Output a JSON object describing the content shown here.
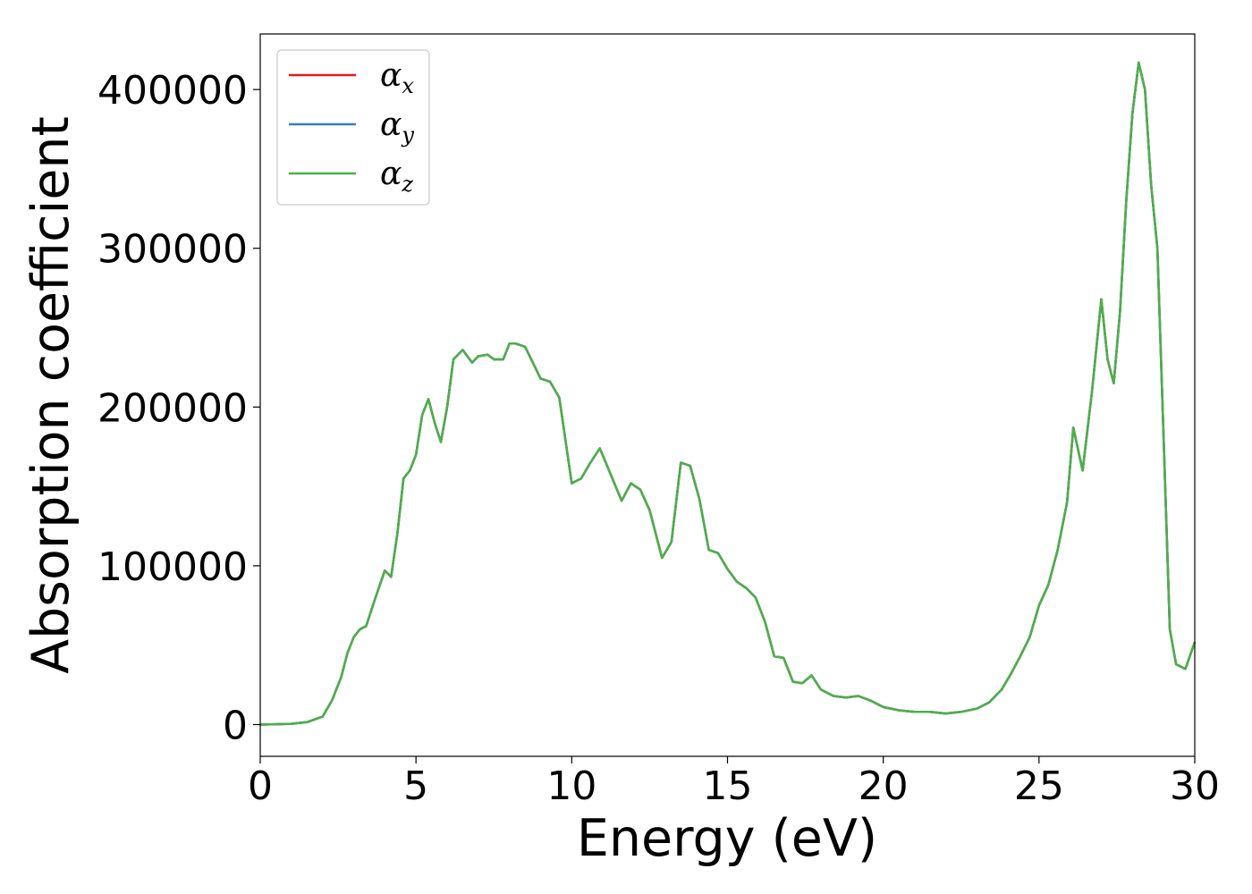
{
  "chart_data": {
    "type": "line",
    "xlabel": "Energy (eV)",
    "ylabel": "Absorption coefficient",
    "xlim": [
      0,
      30
    ],
    "ylim": [
      -20000,
      435000
    ],
    "xticks": [
      0,
      5,
      10,
      15,
      20,
      25,
      30
    ],
    "yticks": [
      0,
      100000,
      200000,
      300000,
      400000
    ],
    "grid": false,
    "legend_position": "top-left",
    "x": [
      0,
      0.5,
      1.0,
      1.5,
      2.0,
      2.3,
      2.6,
      2.8,
      3.0,
      3.2,
      3.4,
      3.7,
      4.0,
      4.2,
      4.4,
      4.6,
      4.8,
      5.0,
      5.2,
      5.4,
      5.6,
      5.8,
      6.0,
      6.2,
      6.5,
      6.8,
      7.0,
      7.3,
      7.5,
      7.8,
      8.0,
      8.2,
      8.5,
      8.8,
      9.0,
      9.3,
      9.6,
      10.0,
      10.3,
      10.6,
      10.9,
      11.2,
      11.6,
      11.9,
      12.2,
      12.5,
      12.9,
      13.2,
      13.5,
      13.8,
      14.1,
      14.4,
      14.7,
      15.0,
      15.3,
      15.6,
      15.9,
      16.2,
      16.5,
      16.8,
      17.1,
      17.4,
      17.7,
      18.0,
      18.4,
      18.8,
      19.2,
      19.6,
      20.0,
      20.5,
      21.0,
      21.5,
      22.0,
      22.5,
      23.0,
      23.4,
      23.8,
      24.1,
      24.4,
      24.7,
      25.0,
      25.3,
      25.6,
      25.9,
      26.1,
      26.4,
      26.7,
      27.0,
      27.2,
      27.4,
      27.6,
      27.8,
      28.0,
      28.2,
      28.4,
      28.6,
      28.8,
      29.0,
      29.2,
      29.4,
      29.7,
      30.0
    ],
    "series": [
      {
        "name": "α",
        "subscript": "x",
        "color": "#e41a1c",
        "values": [
          0,
          200,
          500,
          1500,
          5000,
          15000,
          30000,
          45000,
          55000,
          60000,
          62000,
          80000,
          97000,
          93000,
          120000,
          155000,
          160000,
          170000,
          195000,
          205000,
          190000,
          178000,
          200000,
          230000,
          236000,
          228000,
          232000,
          233000,
          230000,
          230000,
          240000,
          240000,
          238000,
          226000,
          218000,
          216000,
          206000,
          152000,
          155000,
          165000,
          174000,
          160000,
          141000,
          152000,
          148000,
          135000,
          105000,
          115000,
          165000,
          163000,
          142000,
          110000,
          108000,
          98000,
          90000,
          86000,
          80000,
          65000,
          43000,
          42000,
          27000,
          26000,
          31000,
          22000,
          18000,
          17000,
          18000,
          15000,
          11000,
          9000,
          8000,
          8000,
          7000,
          8000,
          10000,
          14000,
          22000,
          32000,
          43000,
          55000,
          75000,
          88000,
          110000,
          140000,
          187000,
          160000,
          210000,
          268000,
          230000,
          215000,
          260000,
          330000,
          385000,
          417000,
          400000,
          340000,
          300000,
          180000,
          60000,
          38000,
          35000,
          52000
        ]
      },
      {
        "name": "α",
        "subscript": "y",
        "color": "#377eb8",
        "values": [
          0,
          200,
          500,
          1500,
          5000,
          15000,
          30000,
          45000,
          55000,
          60000,
          62000,
          80000,
          97000,
          93000,
          120000,
          155000,
          160000,
          170000,
          195000,
          205000,
          190000,
          178000,
          200000,
          230000,
          236000,
          228000,
          232000,
          233000,
          230000,
          230000,
          240000,
          240000,
          238000,
          226000,
          218000,
          216000,
          206000,
          152000,
          155000,
          165000,
          174000,
          160000,
          141000,
          152000,
          148000,
          135000,
          105000,
          115000,
          165000,
          163000,
          142000,
          110000,
          108000,
          98000,
          90000,
          86000,
          80000,
          65000,
          43000,
          42000,
          27000,
          26000,
          31000,
          22000,
          18000,
          17000,
          18000,
          15000,
          11000,
          9000,
          8000,
          8000,
          7000,
          8000,
          10000,
          14000,
          22000,
          32000,
          43000,
          55000,
          75000,
          88000,
          110000,
          140000,
          187000,
          160000,
          210000,
          268000,
          230000,
          215000,
          260000,
          330000,
          385000,
          417000,
          400000,
          340000,
          300000,
          180000,
          60000,
          38000,
          35000,
          52000
        ]
      },
      {
        "name": "α",
        "subscript": "z",
        "color": "#4daf4a",
        "values": [
          0,
          200,
          500,
          1500,
          5000,
          15000,
          30000,
          45000,
          55000,
          60000,
          62000,
          80000,
          97000,
          93000,
          120000,
          155000,
          160000,
          170000,
          195000,
          205000,
          190000,
          178000,
          200000,
          230000,
          236000,
          228000,
          232000,
          233000,
          230000,
          230000,
          240000,
          240000,
          238000,
          226000,
          218000,
          216000,
          206000,
          152000,
          155000,
          165000,
          174000,
          160000,
          141000,
          152000,
          148000,
          135000,
          105000,
          115000,
          165000,
          163000,
          142000,
          110000,
          108000,
          98000,
          90000,
          86000,
          80000,
          65000,
          43000,
          42000,
          27000,
          26000,
          31000,
          22000,
          18000,
          17000,
          18000,
          15000,
          11000,
          9000,
          8000,
          8000,
          7000,
          8000,
          10000,
          14000,
          22000,
          32000,
          43000,
          55000,
          75000,
          88000,
          110000,
          140000,
          187000,
          160000,
          210000,
          268000,
          230000,
          215000,
          260000,
          330000,
          385000,
          417000,
          400000,
          340000,
          300000,
          180000,
          60000,
          38000,
          35000,
          52000
        ]
      }
    ]
  }
}
